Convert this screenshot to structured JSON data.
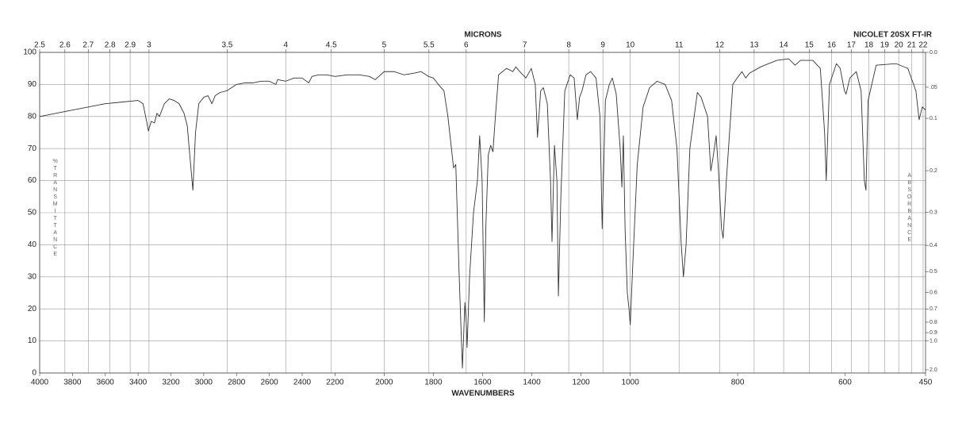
{
  "chart_data": {
    "type": "line",
    "title": "MICRONS",
    "annotation": "NICOLET 20SX FT-IR",
    "xlabel": "WAVENUMBERS",
    "ylabel": "%TRANSMITTANCE",
    "y2label": "ABSORBANCE",
    "color": "#333333",
    "grid": true,
    "xlim": [
      4000,
      450
    ],
    "x_breaks": [
      2200,
      1000
    ],
    "xticks": [
      4000,
      3800,
      3600,
      3400,
      3200,
      3000,
      2800,
      2600,
      2400,
      2200,
      2000,
      1800,
      1600,
      1400,
      1200,
      1000,
      800,
      600,
      450
    ],
    "x2ticks": [
      2.5,
      2.6,
      2.7,
      2.8,
      2.9,
      3,
      3.5,
      4,
      4.5,
      5,
      5.5,
      6,
      7,
      8,
      9,
      10,
      11,
      12,
      13,
      14,
      15,
      16,
      17,
      18,
      19,
      20,
      21,
      22
    ],
    "ylim": [
      0,
      100
    ],
    "yticks": [
      0,
      10,
      20,
      30,
      40,
      50,
      60,
      70,
      80,
      90,
      100
    ],
    "y2ticks": [
      {
        "value": 0,
        "label": "0.0"
      },
      {
        "value": 0.05,
        "label": ".05"
      },
      0.1,
      0.2,
      0.3,
      0.4,
      0.5,
      0.6,
      0.7,
      0.8,
      0.9,
      {
        "value": 1,
        "label": "1.0"
      },
      {
        "value": 2,
        "label": "2.0"
      }
    ],
    "x": [
      4000,
      3950,
      3850,
      3800,
      3700,
      3600,
      3500,
      3400,
      3370,
      3350,
      3337,
      3320,
      3300,
      3285,
      3270,
      3240,
      3210,
      3180,
      3150,
      3120,
      3100,
      3085,
      3066,
      3050,
      3030,
      3000,
      2974,
      2950,
      2930,
      2900,
      2860,
      2800,
      2750,
      2700,
      2650,
      2600,
      2560,
      2550,
      2500,
      2450,
      2400,
      2360,
      2340,
      2300,
      2250,
      2200,
      2150,
      2100,
      2060,
      2036,
      2000,
      1960,
      1920,
      1880,
      1850,
      1820,
      1800,
      1780,
      1757,
      1741,
      1731,
      1718,
      1709,
      1703,
      1695,
      1686,
      1682,
      1672,
      1666,
      1663,
      1653,
      1637,
      1621,
      1612,
      1602,
      1596,
      1593,
      1587,
      1577,
      1567,
      1558,
      1548,
      1535,
      1503,
      1477,
      1465,
      1449,
      1424,
      1402,
      1386,
      1377,
      1364,
      1353,
      1337,
      1324,
      1318,
      1308,
      1298,
      1292,
      1282,
      1266,
      1244,
      1228,
      1215,
      1206,
      1196,
      1180,
      1161,
      1139,
      1123,
      1114,
      1101,
      1085,
      1073,
      1057,
      1041,
      1034,
      1028,
      1021,
      1012,
      1005,
      1000,
      995,
      987,
      976,
      964,
      950,
      935,
      923,
      913,
      905,
      901,
      896,
      889,
      875,
      868,
      856,
      850,
      846,
      840,
      836,
      830,
      827,
      821,
      809,
      801,
      792,
      785,
      778,
      757,
      727,
      705,
      693,
      683,
      660,
      646,
      638,
      635,
      629,
      616,
      609,
      601,
      598,
      591,
      579,
      570,
      564,
      561,
      557,
      542,
      505,
      483,
      468,
      462,
      456,
      450
    ],
    "values": [
      80,
      80.5,
      81.5,
      82,
      83,
      84,
      84.5,
      85,
      84,
      79,
      75.5,
      78.5,
      78,
      81,
      80,
      84,
      85.5,
      85,
      84,
      81,
      77,
      68,
      57,
      75,
      84,
      86,
      86.5,
      84,
      86.5,
      87.5,
      88,
      90,
      90.5,
      90.5,
      91,
      91,
      90,
      91.5,
      91,
      92,
      92,
      90.5,
      92.5,
      93,
      93,
      92.5,
      93,
      93,
      92.5,
      91.5,
      94,
      94,
      93,
      93.5,
      94,
      92.5,
      92,
      90,
      88,
      80,
      73,
      64,
      65,
      50,
      30,
      10,
      1.5,
      22,
      15,
      8,
      30,
      50,
      60,
      74,
      60,
      30,
      16,
      45,
      68,
      71,
      69,
      80,
      93,
      95,
      94,
      95.5,
      94,
      92,
      95,
      90,
      73.5,
      88,
      89,
      84,
      60,
      41,
      71,
      60,
      24,
      55,
      88,
      93,
      92,
      79,
      86,
      88,
      93,
      94,
      92,
      80,
      45,
      85,
      90,
      92,
      87,
      70,
      58,
      74,
      45,
      25,
      20,
      15,
      35,
      65,
      83,
      89,
      91,
      90,
      85,
      70,
      40,
      30,
      40,
      70,
      87.5,
      86,
      80,
      63,
      67,
      74,
      64,
      45,
      42,
      60,
      90,
      92,
      94,
      92,
      93.5,
      95.5,
      97.5,
      98,
      96,
      97.5,
      97.5,
      95,
      75,
      60,
      90,
      96.5,
      95,
      88,
      87,
      92,
      94,
      88,
      60,
      57,
      85,
      96,
      96.5,
      95,
      88,
      79,
      83,
      82
    ]
  }
}
